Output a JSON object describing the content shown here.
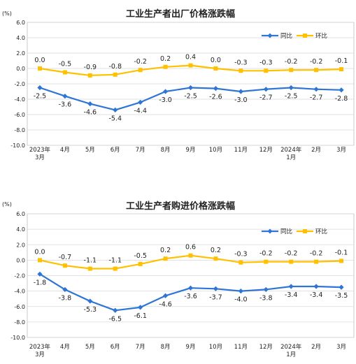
{
  "colors": {
    "yoy": "#2E75D6",
    "mom": "#FFC000",
    "grid": "#D9D9D9",
    "axis": "#BFBFBF"
  },
  "chart_data": [
    {
      "type": "line",
      "title": "工业生产者出厂价格涨跌幅",
      "unit": "(%)",
      "ylim": [
        -10,
        6
      ],
      "yticks": [
        "6.0",
        "4.0",
        "2.0",
        "0.0",
        "-2.0",
        "-4.0",
        "-6.0",
        "-8.0",
        "-10.0"
      ],
      "categories": [
        [
          "2023年",
          "3月"
        ],
        [
          "4月"
        ],
        [
          "5月"
        ],
        [
          "6月"
        ],
        [
          "7月"
        ],
        [
          "8月"
        ],
        [
          "9月"
        ],
        [
          "10月"
        ],
        [
          "11月"
        ],
        [
          "12月"
        ],
        [
          "2024年",
          "1月"
        ],
        [
          "2月"
        ],
        [
          "3月"
        ]
      ],
      "legend_position": "top-right",
      "grid": true,
      "series": [
        {
          "name": "同比",
          "values": [
            -2.5,
            -3.6,
            -4.6,
            -5.4,
            -4.4,
            -3.0,
            -2.5,
            -2.6,
            -3.0,
            -2.7,
            -2.5,
            -2.7,
            -2.8
          ],
          "labels": [
            "-2.5",
            "-3.6",
            "-4.6",
            "-5.4",
            "-4.4",
            "-3.0",
            "-2.5",
            "-2.6",
            "-3.0",
            "-2.7",
            "-2.5",
            "-2.7",
            "-2.8"
          ]
        },
        {
          "name": "环比",
          "values": [
            0.0,
            -0.5,
            -0.9,
            -0.8,
            -0.2,
            0.2,
            0.4,
            0.0,
            -0.3,
            -0.3,
            -0.2,
            -0.2,
            -0.1
          ],
          "labels": [
            "0.0",
            "-0.5",
            "-0.9",
            "-0.8",
            "-0.2",
            "0.2",
            "0.4",
            "0.0",
            "-0.3",
            "-0.3",
            "-0.2",
            "-0.2",
            "-0.1"
          ]
        }
      ]
    },
    {
      "type": "line",
      "title": "工业生产者购进价格涨跌幅",
      "unit": "(%)",
      "ylim": [
        -10,
        6
      ],
      "yticks": [
        "6.0",
        "4.0",
        "2.0",
        "0.0",
        "-2.0",
        "-4.0",
        "-6.0",
        "-8.0",
        "-10.0"
      ],
      "categories": [
        [
          "2023年",
          "3月"
        ],
        [
          "4月"
        ],
        [
          "5月"
        ],
        [
          "6月"
        ],
        [
          "7月"
        ],
        [
          "8月"
        ],
        [
          "9月"
        ],
        [
          "10月"
        ],
        [
          "11月"
        ],
        [
          "12月"
        ],
        [
          "2024年",
          "1月"
        ],
        [
          "2月"
        ],
        [
          "3月"
        ]
      ],
      "legend_position": "top-right",
      "grid": true,
      "series": [
        {
          "name": "同比",
          "values": [
            -1.8,
            -3.8,
            -5.3,
            -6.5,
            -6.1,
            -4.6,
            -3.6,
            -3.7,
            -4.0,
            -3.8,
            -3.4,
            -3.4,
            -3.5
          ],
          "labels": [
            "-1.8",
            "-3.8",
            "-5.3",
            "-6.5",
            "-6.1",
            "-4.6",
            "-3.6",
            "-3.7",
            "-4.0",
            "-3.8",
            "-3.4",
            "-3.4",
            "-3.5"
          ]
        },
        {
          "name": "环比",
          "values": [
            0.0,
            -0.7,
            -1.1,
            -1.1,
            -0.5,
            0.2,
            0.6,
            0.2,
            -0.3,
            -0.2,
            -0.2,
            -0.2,
            -0.1
          ],
          "labels": [
            "0.0",
            "-0.7",
            "-1.1",
            "-1.1",
            "-0.5",
            "0.2",
            "0.6",
            "0.2",
            "-0.3",
            "-0.2",
            "-0.2",
            "-0.2",
            "-0.1"
          ]
        }
      ]
    }
  ]
}
